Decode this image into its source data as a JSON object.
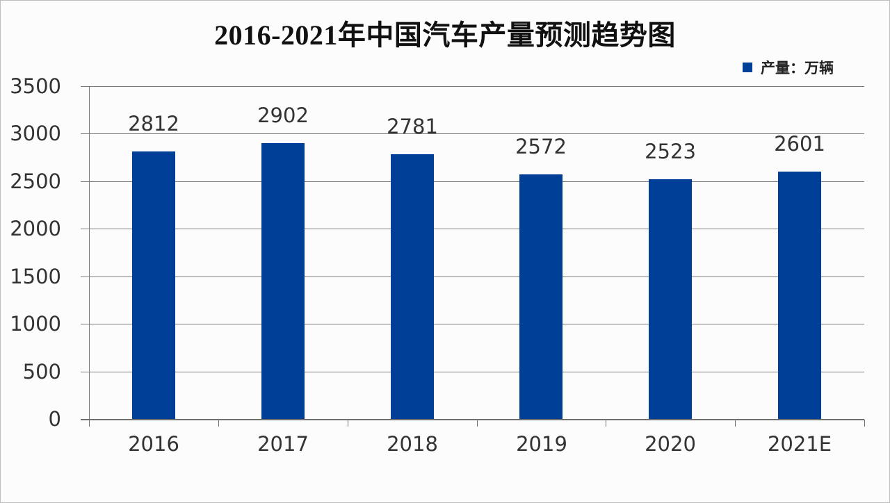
{
  "chart_data": {
    "type": "bar",
    "title": "2016-2021年中国汽车产量预测趋势图",
    "categories": [
      "2016",
      "2017",
      "2018",
      "2019",
      "2020",
      "2021E"
    ],
    "series": [
      {
        "name": "产量：万辆",
        "values": [
          2812,
          2902,
          2781,
          2572,
          2523,
          2601
        ],
        "color": "#003f98"
      }
    ],
    "values": [
      2812,
      2902,
      2781,
      2572,
      2523,
      2601
    ],
    "xlabel": "",
    "ylabel": "",
    "ylim": [
      0,
      3500
    ],
    "yticks": [
      0,
      500,
      1000,
      1500,
      2000,
      2500,
      3000,
      3500
    ],
    "grid": true,
    "legend_position": "top-right",
    "data_labels": true
  },
  "title": "2016-2021年中国汽车产量预测趋势图",
  "legend": {
    "label": "产量：万辆",
    "color": "#003f98"
  },
  "yaxis": {
    "ticks": [
      "0",
      "500",
      "1000",
      "1500",
      "2000",
      "2500",
      "3000",
      "3500"
    ]
  },
  "bars": [
    {
      "category": "2016",
      "value": 2812,
      "label": "2812"
    },
    {
      "category": "2017",
      "value": 2902,
      "label": "2902"
    },
    {
      "category": "2018",
      "value": 2781,
      "label": "2781"
    },
    {
      "category": "2019",
      "value": 2572,
      "label": "2572"
    },
    {
      "category": "2020",
      "value": 2523,
      "label": "2523"
    },
    {
      "category": "2021E",
      "value": 2601,
      "label": "2601"
    }
  ]
}
